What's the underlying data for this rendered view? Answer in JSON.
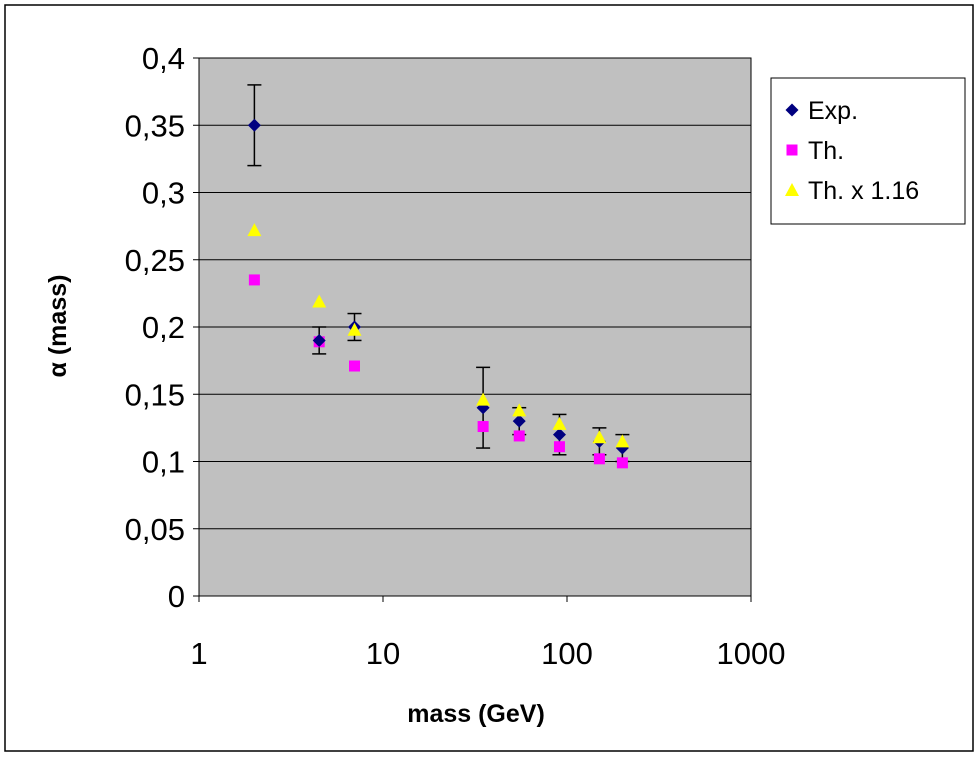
{
  "chart_data": {
    "type": "scatter",
    "title": "",
    "xlabel": "mass (GeV)",
    "ylabel": "α (mass)",
    "x_scale": "log",
    "xlim": [
      1,
      1000
    ],
    "ylim": [
      0,
      0.4
    ],
    "x_ticks": [
      1,
      10,
      100,
      1000
    ],
    "x_tick_labels": [
      "1",
      "10",
      "100",
      "1000"
    ],
    "y_ticks": [
      0,
      0.05,
      0.1,
      0.15,
      0.2,
      0.25,
      0.3,
      0.35,
      0.4
    ],
    "y_tick_labels": [
      "0",
      "0,05",
      "0,1",
      "0,15",
      "0,2",
      "0,25",
      "0,3",
      "0,35",
      "0,4"
    ],
    "grid": "horizontal",
    "legend_position": "right-top",
    "plot_background": "#c0c0c0",
    "series": [
      {
        "name": "Exp.",
        "marker": "diamond",
        "color": "#000080",
        "x": [
          2,
          4.5,
          7,
          35,
          55,
          91,
          150,
          200
        ],
        "y": [
          0.35,
          0.19,
          0.2,
          0.14,
          0.13,
          0.12,
          0.115,
          0.11
        ],
        "error": [
          0.03,
          0.01,
          0.01,
          0.03,
          0.01,
          0.015,
          0.01,
          0.01
        ]
      },
      {
        "name": "Th.",
        "marker": "square",
        "color": "#ff00ff",
        "x": [
          2,
          4.5,
          7,
          35,
          55,
          91,
          150,
          200
        ],
        "y": [
          0.235,
          0.189,
          0.171,
          0.126,
          0.119,
          0.111,
          0.102,
          0.099
        ]
      },
      {
        "name": "Th. x 1.16",
        "marker": "triangle",
        "color": "#ffff00",
        "x": [
          2,
          4.5,
          7,
          35,
          55,
          91,
          150,
          200
        ],
        "y": [
          0.272,
          0.219,
          0.198,
          0.146,
          0.138,
          0.128,
          0.118,
          0.115
        ]
      }
    ]
  }
}
